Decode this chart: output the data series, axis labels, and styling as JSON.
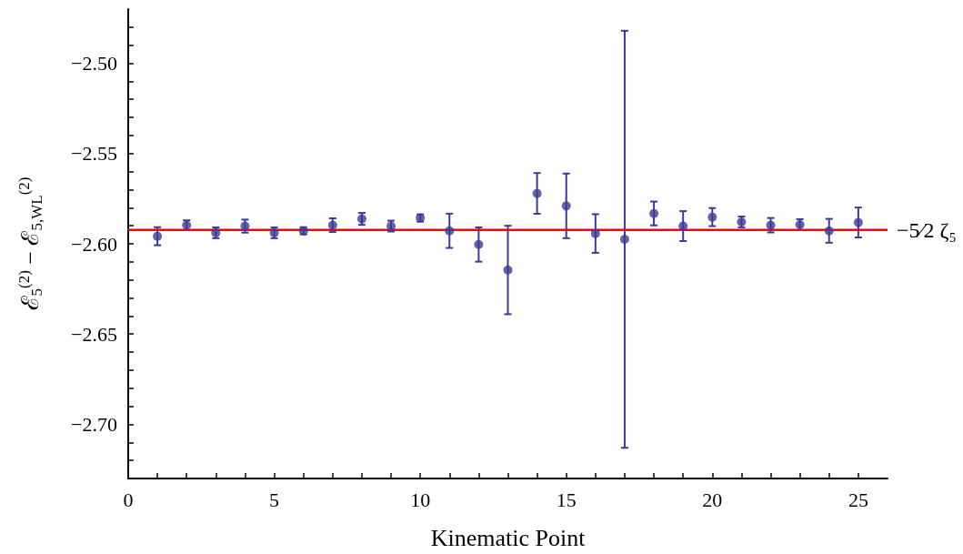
{
  "chart_data": {
    "type": "scatter",
    "xlabel": "Kinematic Point",
    "ylabel": "ℰ$_{5}$$^{(2)}$ − ℰ$_{5,WL}$$^{(2)}$",
    "x": [
      1,
      2,
      3,
      4,
      5,
      6,
      7,
      8,
      9,
      10,
      11,
      12,
      13,
      14,
      15,
      16,
      17,
      18,
      19,
      20,
      21,
      22,
      23,
      24,
      25
    ],
    "series": [
      {
        "color": "#3b3b98",
        "values": [
          -2.5958,
          -2.5897,
          -2.5939,
          -2.5902,
          -2.5939,
          -2.5928,
          -2.5897,
          -2.5862,
          -2.5902,
          -2.5857,
          -2.5928,
          -2.6004,
          -2.6145,
          -2.5721,
          -2.579,
          -2.5943,
          -2.5975,
          -2.5832,
          -2.5902,
          -2.5852,
          -2.5879,
          -2.5897,
          -2.5894,
          -2.5928,
          -2.5882
        ],
        "errors": [
          0.005,
          0.0027,
          0.003,
          0.0036,
          0.003,
          0.002,
          0.0038,
          0.0033,
          0.003,
          0.002,
          0.0095,
          0.0095,
          0.0245,
          0.0113,
          0.0179,
          0.0107,
          0.1155,
          0.0066,
          0.0083,
          0.005,
          0.003,
          0.004,
          0.003,
          0.0066,
          0.0083
        ]
      }
    ],
    "xlim": [
      0,
      26
    ],
    "xticks": [
      0,
      {
        "value": 1,
        "label": null
      },
      {
        "value": 2,
        "label": null
      },
      {
        "value": 3,
        "label": null
      },
      {
        "value": 4,
        "label": null
      },
      5,
      {
        "value": 6,
        "label": null
      },
      {
        "value": 7,
        "label": null
      },
      {
        "value": 8,
        "label": null
      },
      {
        "value": 9,
        "label": null
      },
      10,
      {
        "value": 11,
        "label": null
      },
      {
        "value": 12,
        "label": null
      },
      {
        "value": 13,
        "label": null
      },
      {
        "value": 14,
        "label": null
      },
      15,
      {
        "value": 16,
        "label": null
      },
      {
        "value": 17,
        "label": null
      },
      {
        "value": 18,
        "label": null
      },
      {
        "value": 19,
        "label": null
      },
      20,
      {
        "value": 21,
        "label": null
      },
      {
        "value": 22,
        "label": null
      },
      {
        "value": 23,
        "label": null
      },
      {
        "value": 24,
        "label": null
      },
      25
    ],
    "ylim": [
      -2.73,
      -2.47
    ],
    "yticks": [
      {
        "value": -2.72,
        "label": null
      },
      {
        "value": -2.71,
        "label": null
      },
      {
        "value": -2.7,
        "label": "−2.70"
      },
      {
        "value": -2.69,
        "label": null
      },
      {
        "value": -2.68,
        "label": null
      },
      {
        "value": -2.67,
        "label": null
      },
      {
        "value": -2.66,
        "label": null
      },
      {
        "value": -2.65,
        "label": "−2.65"
      },
      {
        "value": -2.64,
        "label": null
      },
      {
        "value": -2.63,
        "label": null
      },
      {
        "value": -2.62,
        "label": null
      },
      {
        "value": -2.61,
        "label": null
      },
      {
        "value": -2.6,
        "label": "−2.60"
      },
      {
        "value": -2.59,
        "label": null
      },
      {
        "value": -2.58,
        "label": null
      },
      {
        "value": -2.57,
        "label": null
      },
      {
        "value": -2.56,
        "label": null
      },
      {
        "value": -2.55,
        "label": "−2.55"
      },
      {
        "value": -2.54,
        "label": null
      },
      {
        "value": -2.53,
        "label": null
      },
      {
        "value": -2.52,
        "label": null
      },
      {
        "value": -2.51,
        "label": null
      },
      {
        "value": -2.5,
        "label": "−2.50"
      },
      {
        "value": -2.49,
        "label": null
      },
      {
        "value": -2.48,
        "label": null
      }
    ],
    "ref_lines": [
      {
        "axis": "y",
        "value": -2.5923,
        "label": "−5⁄2 ζ₅",
        "color": "#ff0000"
      }
    ],
    "marker": "circle",
    "grid": false
  }
}
